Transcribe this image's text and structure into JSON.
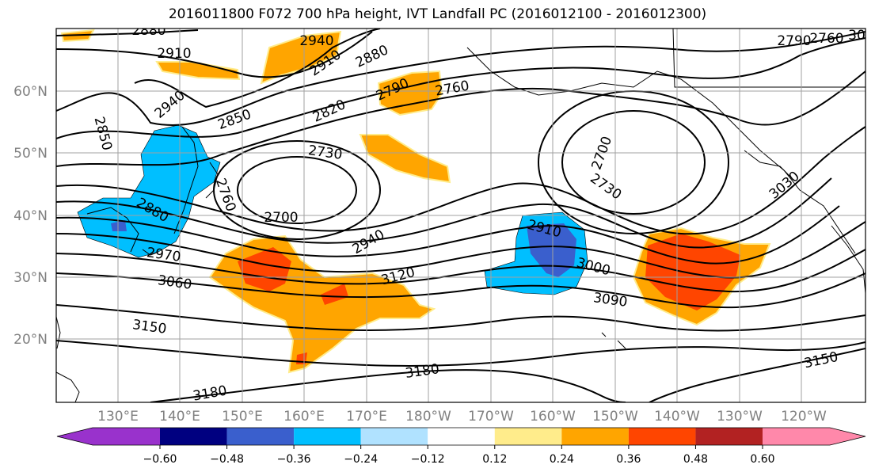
{
  "title": "2016011800 F072 700 hPa height, IVT Landfall PC (2016012100 - 2016012300)",
  "lat_labels": [
    "60°N",
    "50°N",
    "40°N",
    "30°N",
    "20°N"
  ],
  "lon_labels": [
    "130°E",
    "140°E",
    "150°E",
    "160°E",
    "170°E",
    "180°W",
    "170°W",
    "160°W",
    "150°W",
    "140°W",
    "130°W",
    "120°W"
  ],
  "colorbar": {
    "ticks": [
      "−0.60",
      "−0.48",
      "−0.36",
      "−0.24",
      "−0.12",
      "0.12",
      "0.24",
      "0.36",
      "0.48",
      "0.60"
    ],
    "colors": [
      "#9932CC",
      "#000080",
      "#3A5FCD",
      "#00BFFF",
      "#B0E2FF",
      "#FFFFFF",
      "#FFEC8B",
      "#FFA500",
      "#FF4500",
      "#B22222",
      "#FF88AA"
    ]
  },
  "contour_labels": [
    "2880",
    "2910",
    "2940",
    "2910",
    "2880",
    "2790",
    "2760",
    "2790",
    "2760",
    "30",
    "2940",
    "2850",
    "2820",
    "2850",
    "2730",
    "2700",
    "2760",
    "2730",
    "3030",
    "2880",
    "2700",
    "2940",
    "2910",
    "3000",
    "2970",
    "3120",
    "3060",
    "3090",
    "3150",
    "3180",
    "3150",
    "3180"
  ]
}
